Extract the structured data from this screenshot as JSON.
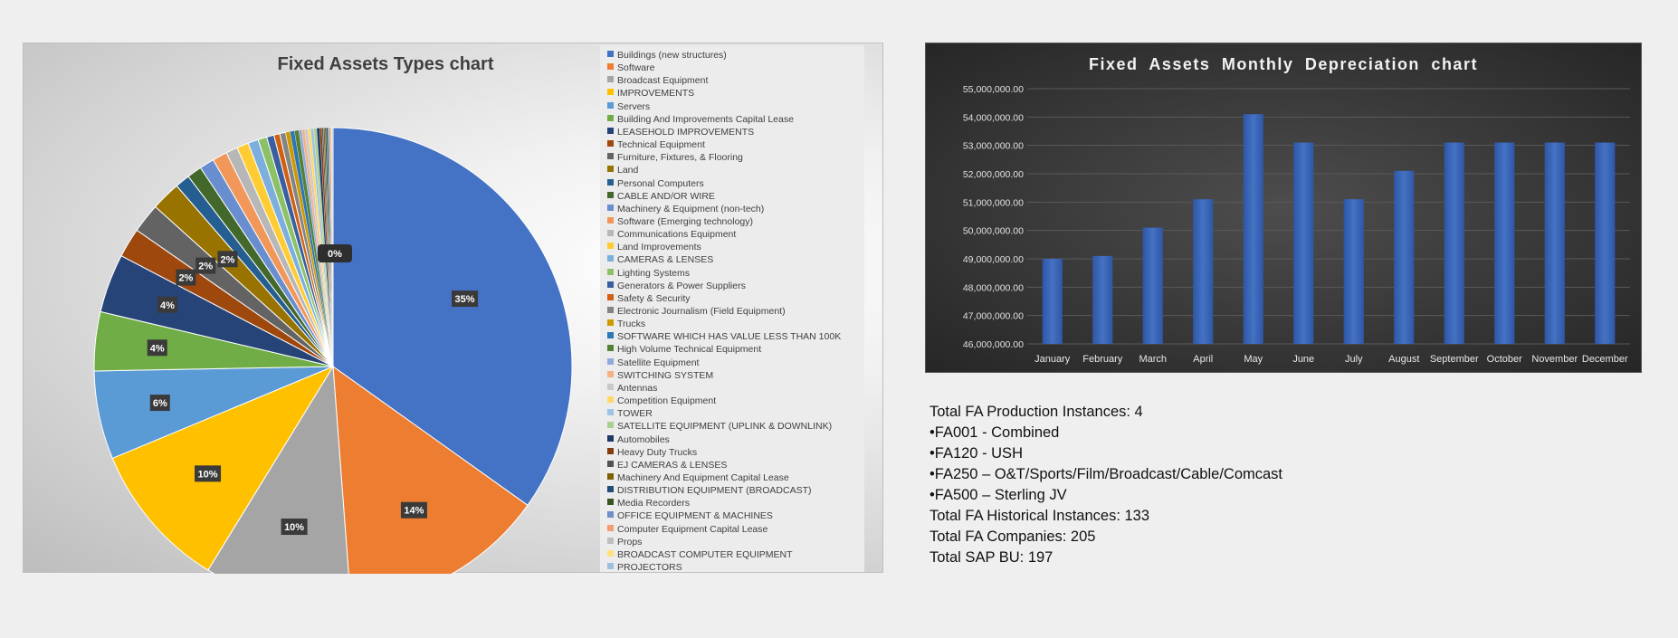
{
  "chart_data": [
    {
      "type": "pie",
      "title": "Fixed Assets Types chart",
      "legend_position": "right",
      "categories": [
        "Buildings (new structures)",
        "Software",
        "Broadcast Equipment",
        "IMPROVEMENTS",
        "Servers",
        "Building And Improvements Capital Lease",
        "LEASEHOLD IMPROVEMENTS",
        "Technical Equipment",
        "Furniture, Fixtures, & Flooring",
        "Land",
        "Personal Computers",
        "CABLE AND/OR WIRE",
        "Machinery & Equipment (non-tech)",
        "Software (Emerging technology)",
        "Communications Equipment",
        "Land Improvements",
        "CAMERAS & LENSES",
        "Lighting Systems",
        "Generators & Power Suppliers",
        "Safety & Security",
        "Electronic Journalism (Field Equipment)",
        "Trucks",
        "SOFTWARE WHICH HAS VALUE LESS THAN 100K",
        "High Volume Technical Equipment",
        "Satellite Equipment",
        "SWITCHING SYSTEM",
        "Antennas",
        "Competition Equipment",
        "TOWER",
        "SATELLITE EQUIPMENT (UPLINK & DOWNLINK)",
        "Automobiles",
        "Heavy Duty Trucks",
        "EJ CAMERAS & LENSES",
        "Machinery And Equipment Capital Lease",
        "DISTRIBUTION EQUIPMENT (BROADCAST)",
        "Media Recorders",
        "OFFICE EQUIPMENT & MACHINES",
        "Computer Equipment Capital Lease",
        "Props",
        "BROADCAST COMPUTER EQUIPMENT",
        "PROJECTORS"
      ],
      "values": [
        35,
        14,
        10,
        10,
        6,
        4,
        4,
        2,
        2,
        2,
        1,
        1,
        1,
        1,
        0.8,
        0.8,
        0.7,
        0.6,
        0.5,
        0.4,
        0.4,
        0.3,
        0.3,
        0.3,
        0.2,
        0.2,
        0.2,
        0.2,
        0.2,
        0.2,
        0.2,
        0.15,
        0.1,
        0.1,
        0.1,
        0.1,
        0.1,
        0.1,
        0.05,
        0.05,
        0.05
      ],
      "colors": [
        "#4472c4",
        "#ed7d31",
        "#a5a5a5",
        "#ffc000",
        "#5b9bd5",
        "#70ad47",
        "#264478",
        "#9e480e",
        "#636363",
        "#997300",
        "#255e91",
        "#43682b",
        "#698ed0",
        "#f1975a",
        "#b7b7b7",
        "#ffcd33",
        "#7cafdd",
        "#8cc168",
        "#3a5fa0",
        "#d26012",
        "#848484",
        "#cc9a00",
        "#2e75b6",
        "#548235",
        "#8faadc",
        "#f4b183",
        "#c9c9c9",
        "#ffd966",
        "#9dc3e6",
        "#a9d18e",
        "#203864",
        "#843c0c",
        "#525252",
        "#7f6000",
        "#1f4e79",
        "#375623",
        "#6f8fc9",
        "#f0a070",
        "#bfbfbf",
        "#ffe080",
        "#9fbfe0"
      ],
      "data_labels": [
        {
          "index": 0,
          "text": "35%"
        },
        {
          "index": 1,
          "text": "14%"
        },
        {
          "index": 2,
          "text": "10%"
        },
        {
          "index": 3,
          "text": "10%"
        },
        {
          "index": 4,
          "text": "6%"
        },
        {
          "index": 5,
          "text": "4%"
        },
        {
          "index": 6,
          "text": "4%"
        },
        {
          "index": 7,
          "text": "2%"
        },
        {
          "index": 8,
          "text": "2%"
        },
        {
          "index": 9,
          "text": "2%"
        }
      ],
      "small_slice_label": "0%"
    },
    {
      "type": "bar",
      "title": "Fixed Assets Monthly Depreciation chart",
      "categories": [
        "January",
        "February",
        "March",
        "April",
        "May",
        "June",
        "July",
        "August",
        "September",
        "October",
        "November",
        "December"
      ],
      "values": [
        49000000,
        49100000,
        50100000,
        51100000,
        54100000,
        53100000,
        51100000,
        52100000,
        53100000,
        53100000,
        53100000,
        53100000
      ],
      "ylim": [
        46000000,
        55000000
      ],
      "yticks": [
        {
          "value": 46000000,
          "label": "46,000,000.00"
        },
        {
          "value": 47000000,
          "label": "47,000,000.00"
        },
        {
          "value": 48000000,
          "label": "48,000,000.00"
        },
        {
          "value": 49000000,
          "label": "49,000,000.00"
        },
        {
          "value": 50000000,
          "label": "50,000,000.00"
        },
        {
          "value": 51000000,
          "label": "51,000,000.00"
        },
        {
          "value": 52000000,
          "label": "52,000,000.00"
        },
        {
          "value": 53000000,
          "label": "53,000,000.00"
        },
        {
          "value": 54000000,
          "label": "54,000,000.00"
        },
        {
          "value": 55000000,
          "label": "55,000,000.00"
        }
      ],
      "grid": true,
      "bar_color": "#4472c4"
    }
  ],
  "stats": {
    "lines": [
      "Total FA Production Instances: 4",
      "•FA001 - Combined",
      "•FA120 - USH",
      "•FA250 – O&T/Sports/Film/Broadcast/Cable/Comcast",
      "•FA500 – Sterling JV",
      "Total FA Historical Instances: 133",
      "Total FA Companies: 205",
      "Total SAP BU: 197"
    ]
  }
}
